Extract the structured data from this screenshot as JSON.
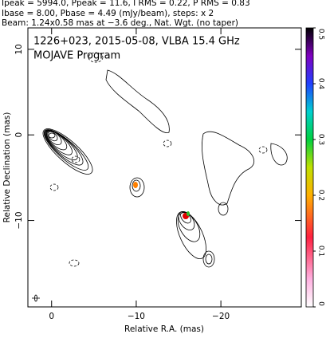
{
  "header": {
    "lines": [
      "Ipeak = 5994.0, Ppeak = 11.6, I RMS = 0.22, P RMS = 0.83",
      "Ibase = 8.00, Pbase = 4.49 (mJy/beam), steps: x 2",
      "Beam: 1.24x0.58 mas at −3.6 deg., Nat. Wgt. (no taper)"
    ]
  },
  "chart_data": {
    "type": "contour",
    "title": "1226+023, 2015-05-08, VLBA 15.4 GHz",
    "subtitle": "MOJAVE Program",
    "xlabel": "Relative R.A. (mas)",
    "ylabel": "Relative Declination (mas)",
    "xlim": [
      2.8,
      -29.5
    ],
    "ylim": [
      -20.1,
      12.5
    ],
    "xticks": [
      0,
      {
        "value": -10,
        "label": "−10"
      },
      {
        "value": -20,
        "label": "−20"
      }
    ],
    "yticks": [
      {
        "value": -10,
        "label": "−10"
      },
      0,
      10
    ],
    "clim": [
      0,
      0.5
    ],
    "cticks": [
      0,
      0.1,
      0.2,
      0.3,
      0.4,
      0.5
    ]
  }
}
